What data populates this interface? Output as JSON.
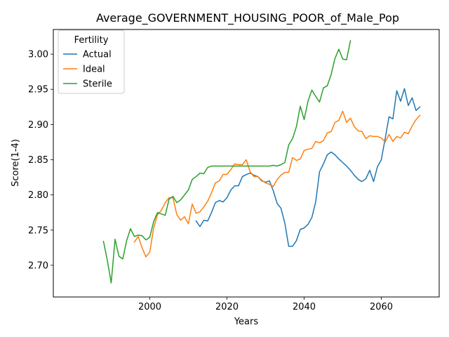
{
  "chart_data": {
    "type": "line",
    "title": "Average_GOVERNMENT_HOUSING_POOR_of_Male_Pop",
    "xlabel": "Years",
    "ylabel": "Score(1-4)",
    "xlim": [
      1975,
      2075
    ],
    "ylim": [
      2.655,
      3.035
    ],
    "x_ticks": [
      2000,
      2020,
      2040,
      2060
    ],
    "y_ticks": [
      2.7,
      2.75,
      2.8,
      2.85,
      2.9,
      2.95,
      3.0
    ],
    "y_tick_labels": [
      "2.70",
      "2.75",
      "2.80",
      "2.85",
      "2.90",
      "2.95",
      "3.00"
    ],
    "grid": false,
    "legend": {
      "title": "Fertility",
      "placement": "top-left"
    },
    "series": [
      {
        "name": "Actual",
        "color": "#1f77b4",
        "x": [
          2012,
          2013,
          2014,
          2015,
          2016,
          2017,
          2018,
          2019,
          2020,
          2021,
          2022,
          2023,
          2024,
          2025,
          2026,
          2027,
          2028,
          2029,
          2030,
          2031,
          2032,
          2033,
          2034,
          2035,
          2036,
          2037,
          2038,
          2039,
          2040,
          2041,
          2042,
          2043,
          2044,
          2045,
          2046,
          2047,
          2048,
          2049,
          2050,
          2051,
          2052,
          2053,
          2054,
          2055,
          2056,
          2057,
          2058,
          2059,
          2060,
          2061,
          2062,
          2063,
          2064,
          2065,
          2066,
          2067,
          2068,
          2069,
          2070
        ],
        "values": [
          2.763,
          2.755,
          2.764,
          2.763,
          2.775,
          2.789,
          2.792,
          2.79,
          2.796,
          2.807,
          2.813,
          2.813,
          2.826,
          2.829,
          2.831,
          2.828,
          2.826,
          2.82,
          2.818,
          2.82,
          2.806,
          2.788,
          2.781,
          2.76,
          2.727,
          2.727,
          2.735,
          2.751,
          2.753,
          2.758,
          2.768,
          2.79,
          2.833,
          2.844,
          2.857,
          2.861,
          2.857,
          2.851,
          2.846,
          2.841,
          2.835,
          2.828,
          2.822,
          2.819,
          2.823,
          2.835,
          2.819,
          2.84,
          2.85,
          2.88,
          2.911,
          2.908,
          2.948,
          2.933,
          2.951,
          2.927,
          2.938,
          2.92,
          2.925
        ]
      },
      {
        "name": "Ideal",
        "color": "#ff7f0e",
        "x": [
          1996,
          1997,
          1998,
          1999,
          2000,
          2001,
          2002,
          2003,
          2004,
          2005,
          2006,
          2007,
          2008,
          2009,
          2010,
          2011,
          2012,
          2013,
          2014,
          2015,
          2016,
          2017,
          2018,
          2019,
          2020,
          2021,
          2022,
          2023,
          2024,
          2025,
          2026,
          2027,
          2028,
          2029,
          2030,
          2031,
          2032,
          2033,
          2034,
          2035,
          2036,
          2037,
          2038,
          2039,
          2040,
          2041,
          2042,
          2043,
          2044,
          2045,
          2046,
          2047,
          2048,
          2049,
          2050,
          2051,
          2052,
          2053,
          2054,
          2055,
          2056,
          2057,
          2058,
          2059,
          2060,
          2061,
          2062,
          2063,
          2064,
          2065,
          2066,
          2067,
          2068,
          2069,
          2070
        ],
        "values": [
          2.733,
          2.741,
          2.725,
          2.712,
          2.719,
          2.753,
          2.772,
          2.778,
          2.789,
          2.796,
          2.796,
          2.772,
          2.764,
          2.769,
          2.759,
          2.787,
          2.774,
          2.776,
          2.783,
          2.791,
          2.803,
          2.817,
          2.82,
          2.829,
          2.829,
          2.836,
          2.844,
          2.843,
          2.843,
          2.85,
          2.833,
          2.826,
          2.826,
          2.821,
          2.817,
          2.815,
          2.812,
          2.822,
          2.828,
          2.832,
          2.832,
          2.853,
          2.849,
          2.851,
          2.863,
          2.865,
          2.866,
          2.876,
          2.874,
          2.877,
          2.888,
          2.89,
          2.903,
          2.906,
          2.919,
          2.903,
          2.909,
          2.897,
          2.891,
          2.89,
          2.88,
          2.884,
          2.883,
          2.883,
          2.881,
          2.875,
          2.886,
          2.876,
          2.883,
          2.881,
          2.889,
          2.887,
          2.898,
          2.907,
          2.913
        ]
      },
      {
        "name": "Sterile",
        "color": "#2ca02c",
        "x": [
          1988,
          1989,
          1990,
          1991,
          1992,
          1993,
          1994,
          1995,
          1996,
          1997,
          1998,
          1999,
          2000,
          2001,
          2002,
          2003,
          2004,
          2005,
          2006,
          2007,
          2008,
          2009,
          2010,
          2011,
          2012,
          2013,
          2014,
          2015,
          2016,
          2017,
          2018,
          2019,
          2020,
          2021,
          2022,
          2023,
          2024,
          2025,
          2026,
          2027,
          2028,
          2029,
          2030,
          2031,
          2032,
          2033,
          2034,
          2035,
          2036,
          2037,
          2038,
          2039,
          2040,
          2041,
          2042,
          2043,
          2044,
          2045,
          2046,
          2047,
          2048,
          2049,
          2050,
          2051,
          2052
        ],
        "values": [
          2.734,
          2.707,
          2.675,
          2.737,
          2.713,
          2.709,
          2.735,
          2.752,
          2.741,
          2.743,
          2.742,
          2.736,
          2.74,
          2.762,
          2.775,
          2.773,
          2.771,
          2.794,
          2.798,
          2.789,
          2.793,
          2.8,
          2.807,
          2.822,
          2.826,
          2.831,
          2.83,
          2.839,
          2.841,
          2.841,
          2.841,
          2.841,
          2.841,
          2.841,
          2.841,
          2.841,
          2.841,
          2.841,
          2.841,
          2.841,
          2.841,
          2.841,
          2.841,
          2.841,
          2.842,
          2.841,
          2.843,
          2.846,
          2.871,
          2.88,
          2.897,
          2.926,
          2.907,
          2.933,
          2.949,
          2.94,
          2.932,
          2.952,
          2.955,
          2.971,
          2.994,
          3.007,
          2.993,
          2.992,
          3.019
        ]
      }
    ]
  }
}
